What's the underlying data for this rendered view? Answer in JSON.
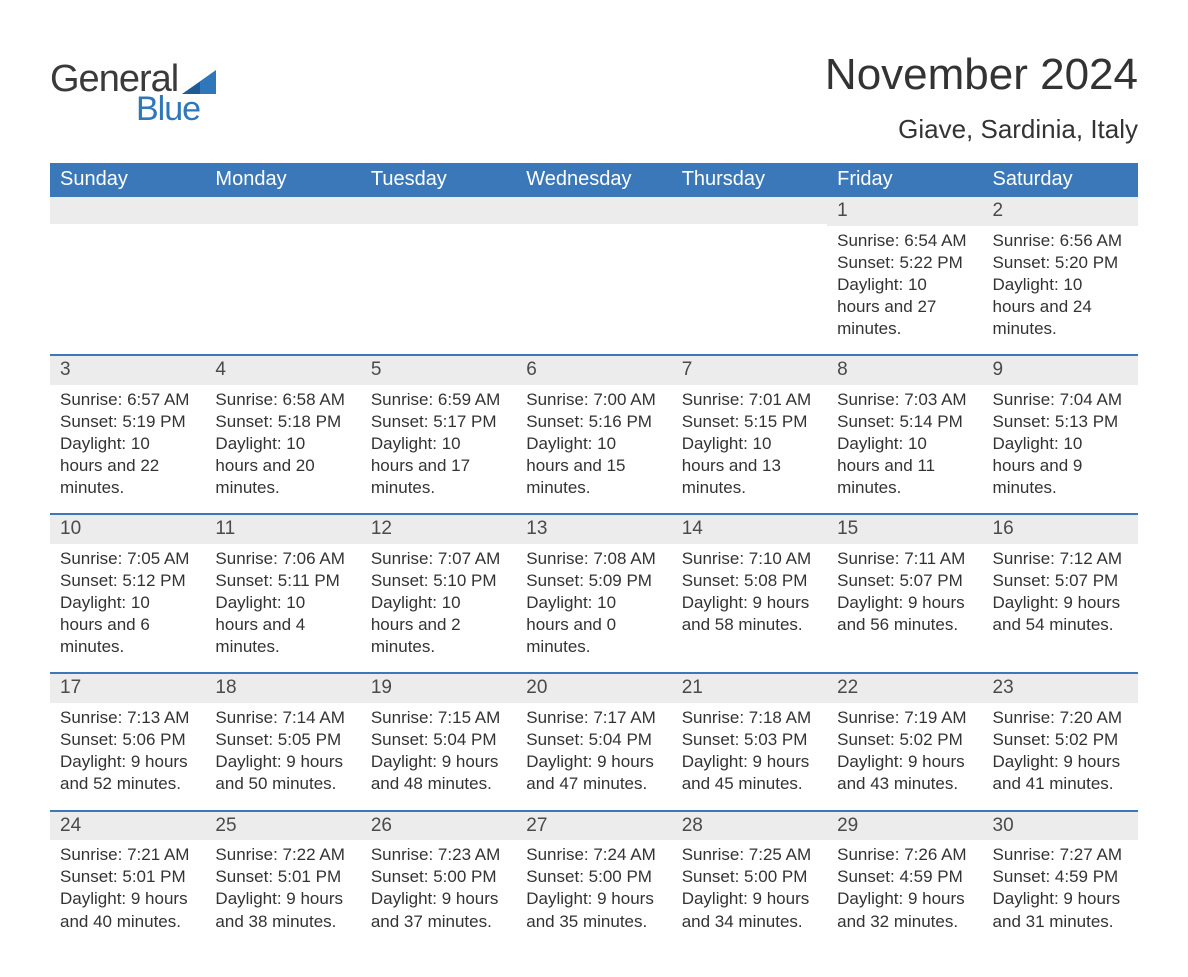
{
  "colors": {
    "header_bg": "#3a78b9",
    "row_divider": "#3a78b9",
    "daynum_bg": "#ececec",
    "text": "#333333",
    "logo_blue": "#2f76bb",
    "logo_accent": "#2f76bb"
  },
  "logo": {
    "word1": "General",
    "word2": "Blue"
  },
  "title": "November 2024",
  "location": "Giave, Sardinia, Italy",
  "weekdays": [
    "Sunday",
    "Monday",
    "Tuesday",
    "Wednesday",
    "Thursday",
    "Friday",
    "Saturday"
  ],
  "labels": {
    "sunrise": "Sunrise:",
    "sunset": "Sunset:",
    "daylight": "Daylight:"
  },
  "weeks": [
    [
      null,
      null,
      null,
      null,
      null,
      {
        "day": "1",
        "sunrise": "6:54 AM",
        "sunset": "5:22 PM",
        "daylight": "10 hours and 27 minutes."
      },
      {
        "day": "2",
        "sunrise": "6:56 AM",
        "sunset": "5:20 PM",
        "daylight": "10 hours and 24 minutes."
      }
    ],
    [
      {
        "day": "3",
        "sunrise": "6:57 AM",
        "sunset": "5:19 PM",
        "daylight": "10 hours and 22 minutes."
      },
      {
        "day": "4",
        "sunrise": "6:58 AM",
        "sunset": "5:18 PM",
        "daylight": "10 hours and 20 minutes."
      },
      {
        "day": "5",
        "sunrise": "6:59 AM",
        "sunset": "5:17 PM",
        "daylight": "10 hours and 17 minutes."
      },
      {
        "day": "6",
        "sunrise": "7:00 AM",
        "sunset": "5:16 PM",
        "daylight": "10 hours and 15 minutes."
      },
      {
        "day": "7",
        "sunrise": "7:01 AM",
        "sunset": "5:15 PM",
        "daylight": "10 hours and 13 minutes."
      },
      {
        "day": "8",
        "sunrise": "7:03 AM",
        "sunset": "5:14 PM",
        "daylight": "10 hours and 11 minutes."
      },
      {
        "day": "9",
        "sunrise": "7:04 AM",
        "sunset": "5:13 PM",
        "daylight": "10 hours and 9 minutes."
      }
    ],
    [
      {
        "day": "10",
        "sunrise": "7:05 AM",
        "sunset": "5:12 PM",
        "daylight": "10 hours and 6 minutes."
      },
      {
        "day": "11",
        "sunrise": "7:06 AM",
        "sunset": "5:11 PM",
        "daylight": "10 hours and 4 minutes."
      },
      {
        "day": "12",
        "sunrise": "7:07 AM",
        "sunset": "5:10 PM",
        "daylight": "10 hours and 2 minutes."
      },
      {
        "day": "13",
        "sunrise": "7:08 AM",
        "sunset": "5:09 PM",
        "daylight": "10 hours and 0 minutes."
      },
      {
        "day": "14",
        "sunrise": "7:10 AM",
        "sunset": "5:08 PM",
        "daylight": "9 hours and 58 minutes."
      },
      {
        "day": "15",
        "sunrise": "7:11 AM",
        "sunset": "5:07 PM",
        "daylight": "9 hours and 56 minutes."
      },
      {
        "day": "16",
        "sunrise": "7:12 AM",
        "sunset": "5:07 PM",
        "daylight": "9 hours and 54 minutes."
      }
    ],
    [
      {
        "day": "17",
        "sunrise": "7:13 AM",
        "sunset": "5:06 PM",
        "daylight": "9 hours and 52 minutes."
      },
      {
        "day": "18",
        "sunrise": "7:14 AM",
        "sunset": "5:05 PM",
        "daylight": "9 hours and 50 minutes."
      },
      {
        "day": "19",
        "sunrise": "7:15 AM",
        "sunset": "5:04 PM",
        "daylight": "9 hours and 48 minutes."
      },
      {
        "day": "20",
        "sunrise": "7:17 AM",
        "sunset": "5:04 PM",
        "daylight": "9 hours and 47 minutes."
      },
      {
        "day": "21",
        "sunrise": "7:18 AM",
        "sunset": "5:03 PM",
        "daylight": "9 hours and 45 minutes."
      },
      {
        "day": "22",
        "sunrise": "7:19 AM",
        "sunset": "5:02 PM",
        "daylight": "9 hours and 43 minutes."
      },
      {
        "day": "23",
        "sunrise": "7:20 AM",
        "sunset": "5:02 PM",
        "daylight": "9 hours and 41 minutes."
      }
    ],
    [
      {
        "day": "24",
        "sunrise": "7:21 AM",
        "sunset": "5:01 PM",
        "daylight": "9 hours and 40 minutes."
      },
      {
        "day": "25",
        "sunrise": "7:22 AM",
        "sunset": "5:01 PM",
        "daylight": "9 hours and 38 minutes."
      },
      {
        "day": "26",
        "sunrise": "7:23 AM",
        "sunset": "5:00 PM",
        "daylight": "9 hours and 37 minutes."
      },
      {
        "day": "27",
        "sunrise": "7:24 AM",
        "sunset": "5:00 PM",
        "daylight": "9 hours and 35 minutes."
      },
      {
        "day": "28",
        "sunrise": "7:25 AM",
        "sunset": "5:00 PM",
        "daylight": "9 hours and 34 minutes."
      },
      {
        "day": "29",
        "sunrise": "7:26 AM",
        "sunset": "4:59 PM",
        "daylight": "9 hours and 32 minutes."
      },
      {
        "day": "30",
        "sunrise": "7:27 AM",
        "sunset": "4:59 PM",
        "daylight": "9 hours and 31 minutes."
      }
    ]
  ]
}
